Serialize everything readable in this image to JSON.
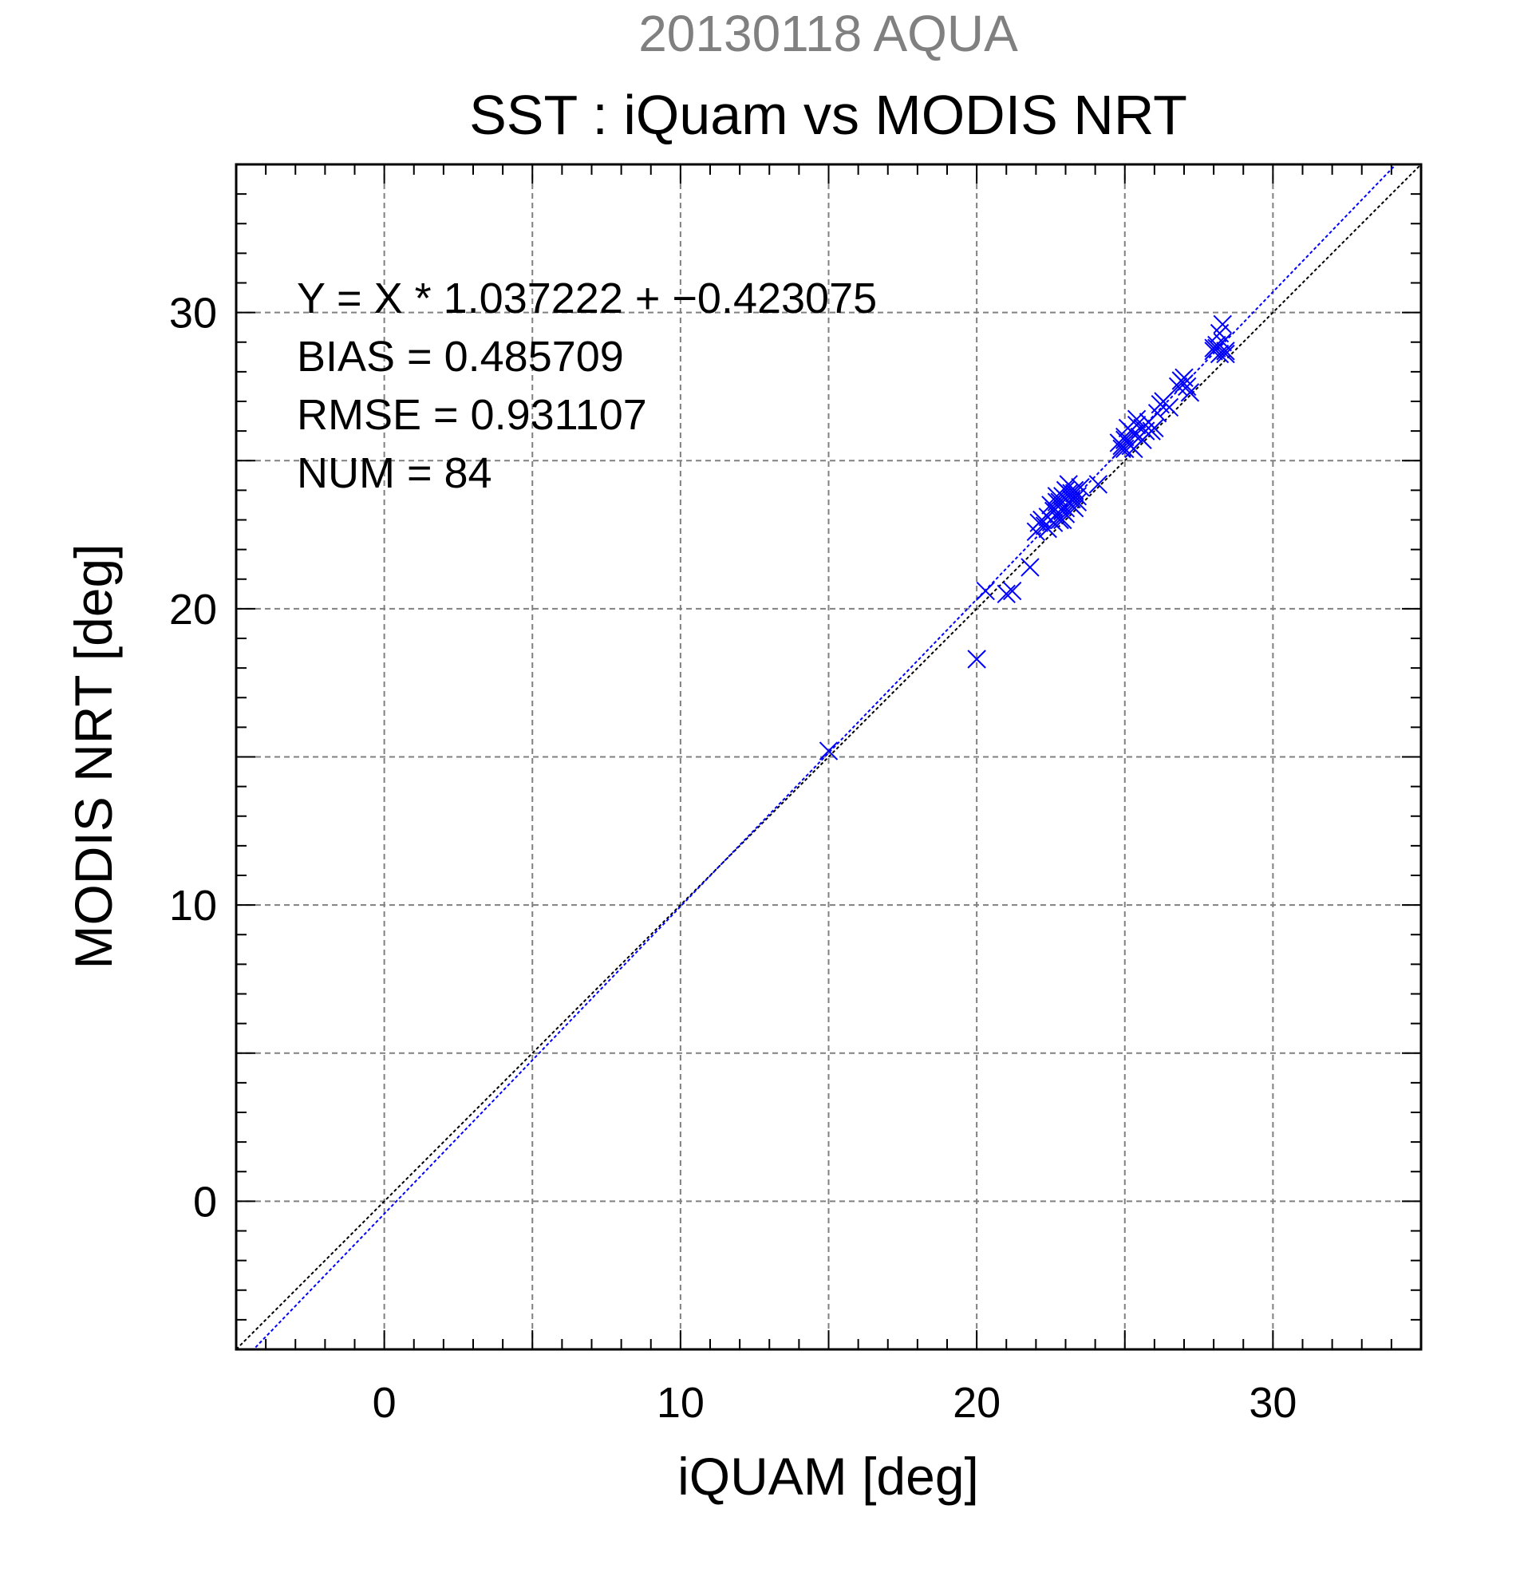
{
  "chart_data": {
    "type": "scatter",
    "supertitle": "20130118 AQUA",
    "title": "SST : iQuam vs MODIS NRT",
    "xlabel": "iQUAM [deg]",
    "ylabel": "MODIS NRT [deg]",
    "xlim": [
      -5,
      35
    ],
    "ylim": [
      -5,
      35
    ],
    "x_ticks": [
      0,
      10,
      20,
      30
    ],
    "y_ticks": [
      0,
      10,
      20,
      30
    ],
    "x_tick_labels": [
      "0",
      "10",
      "20",
      "30"
    ],
    "y_tick_labels": [
      "0",
      "10",
      "20",
      "30"
    ],
    "grid": true,
    "grid_step": 5,
    "minor_tick_step": 1,
    "stats": {
      "fit": "Y = X * 1.037222 + −0.423075",
      "bias": "BIAS = 0.485709",
      "rmse": "RMSE = 0.931107",
      "num": "NUM = 84"
    },
    "fit_line": {
      "slope": 1.037222,
      "intercept": -0.423075,
      "color": "#0000ff"
    },
    "identity_line": {
      "slope": 1,
      "intercept": 0,
      "color": "#000000"
    },
    "marker_color": "#0000ff",
    "x": [
      15.0,
      20.0,
      20.3,
      21.0,
      21.2,
      21.8,
      22.0,
      22.1,
      22.2,
      22.3,
      22.4,
      22.5,
      22.5,
      22.6,
      22.6,
      22.7,
      22.7,
      22.8,
      22.8,
      22.9,
      22.9,
      23.0,
      23.0,
      23.0,
      23.1,
      23.1,
      23.2,
      23.2,
      23.3,
      23.3,
      23.4,
      23.5,
      24.1,
      24.8,
      24.9,
      25.0,
      25.0,
      25.1,
      25.1,
      25.2,
      25.2,
      25.3,
      25.3,
      25.4,
      25.5,
      25.6,
      25.7,
      25.8,
      25.9,
      26.0,
      26.2,
      26.3,
      26.5,
      26.8,
      26.9,
      27.0,
      27.1,
      27.2,
      28.0,
      28.1,
      28.2,
      28.3,
      28.4,
      28.2,
      28.3,
      28.1,
      22.6,
      22.9,
      23.1,
      23.4,
      25.0,
      25.4,
      22.4,
      22.7,
      23.0,
      23.2,
      26.1,
      27.0,
      28.0,
      25.6,
      24.9,
      22.8,
      23.3,
      28.4
    ],
    "y": [
      15.2,
      18.3,
      20.6,
      20.5,
      20.6,
      21.4,
      22.6,
      22.9,
      23.0,
      22.8,
      23.1,
      23.0,
      23.5,
      22.9,
      23.4,
      23.2,
      23.6,
      23.0,
      23.5,
      23.3,
      23.8,
      23.4,
      23.7,
      24.0,
      23.6,
      24.2,
      23.5,
      23.9,
      23.4,
      24.0,
      23.8,
      24.1,
      24.2,
      25.6,
      25.5,
      25.4,
      25.8,
      26.1,
      25.6,
      25.5,
      26.0,
      25.4,
      25.9,
      26.2,
      25.8,
      25.7,
      26.0,
      26.3,
      26.0,
      26.1,
      26.9,
      27.0,
      26.8,
      27.5,
      27.7,
      27.6,
      27.5,
      27.3,
      28.7,
      28.9,
      29.3,
      29.6,
      28.7,
      28.6,
      29.0,
      28.8,
      23.3,
      23.0,
      23.9,
      23.6,
      25.7,
      26.4,
      22.7,
      23.8,
      23.2,
      23.7,
      26.6,
      27.8,
      28.8,
      26.1,
      25.4,
      23.6,
      23.9,
      28.6
    ]
  }
}
